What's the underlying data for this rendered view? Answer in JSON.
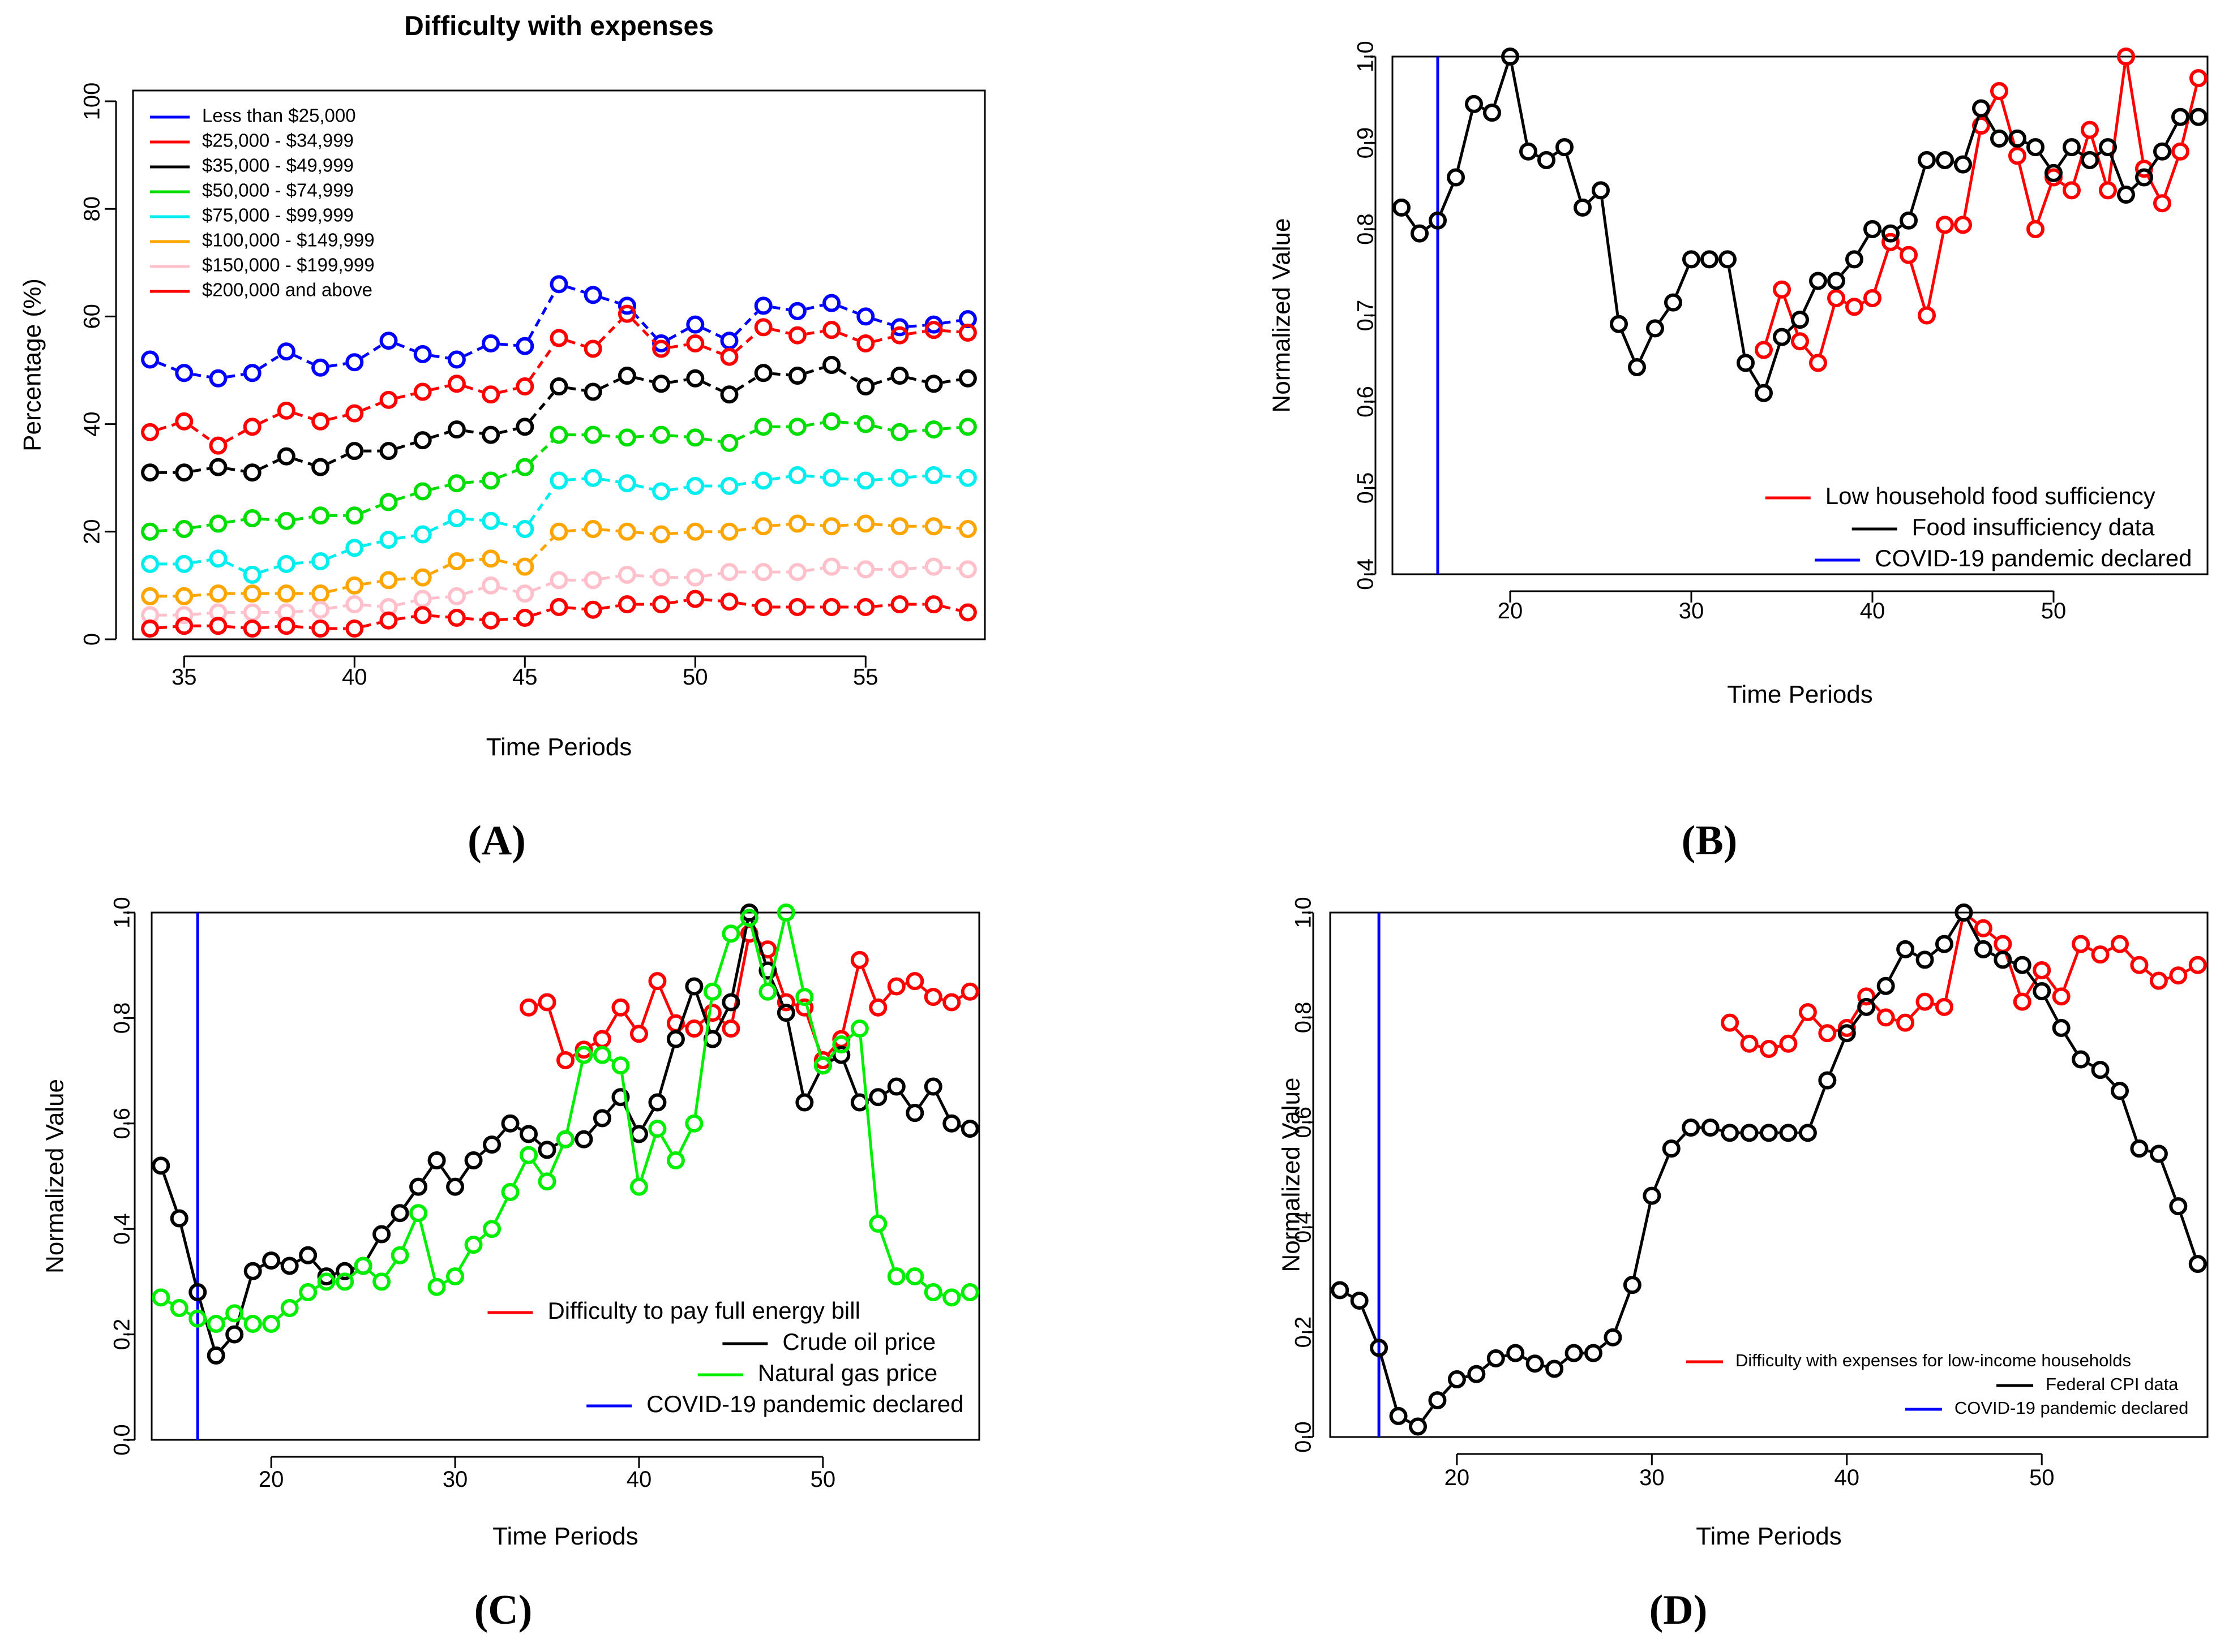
{
  "chart_data": [
    {
      "type": "line",
      "panel_label": "(A)",
      "title": "Difficulty with expenses",
      "xlabel": "Time Periods",
      "ylabel": "Percentage (%)",
      "xlim": [
        33.5,
        58.5
      ],
      "ylim": [
        0,
        102
      ],
      "xticks": [
        35,
        40,
        45,
        50,
        55
      ],
      "yticks": [
        0,
        20,
        40,
        60,
        80,
        100
      ],
      "grid": false,
      "legend_position": "top-left",
      "legend_size": "small",
      "x": [
        34,
        35,
        36,
        37,
        38,
        39,
        40,
        41,
        42,
        43,
        44,
        45,
        46,
        47,
        48,
        49,
        50,
        51,
        52,
        53,
        54,
        55,
        56,
        57,
        58
      ],
      "series": [
        {
          "name": "Less than $25,000",
          "color": "#0000FF",
          "values": [
            52,
            49.5,
            48.5,
            49.5,
            53.5,
            50.5,
            51.5,
            55.5,
            53,
            52,
            55,
            54.5,
            66,
            64,
            62,
            55,
            58.5,
            55.5,
            62,
            61,
            62.5,
            60,
            58,
            58.5,
            59.5
          ]
        },
        {
          "name": "$25,000 - $34,999",
          "color": "#FF0000",
          "values": [
            38.5,
            40.5,
            36,
            39.5,
            42.5,
            40.5,
            42,
            44.5,
            46,
            47.5,
            45.5,
            47,
            56,
            54,
            60.5,
            54,
            55,
            52.5,
            58,
            56.5,
            57.5,
            55,
            56.5,
            57.5,
            57
          ]
        },
        {
          "name": "$35,000 - $49,999",
          "color": "#000000",
          "values": [
            31,
            31,
            32,
            31,
            34,
            32,
            35,
            35,
            37,
            39,
            38,
            39.5,
            47,
            46,
            49,
            47.5,
            48.5,
            45.5,
            49.5,
            49,
            51,
            47,
            49,
            47.5,
            48.5
          ]
        },
        {
          "name": "$50,000 - $74,999",
          "color": "#00DD00",
          "values": [
            20,
            20.5,
            21.5,
            22.5,
            22,
            23,
            23,
            25.5,
            27.5,
            29,
            29.5,
            32,
            38,
            38,
            37.5,
            38,
            37.5,
            36.5,
            39.5,
            39.5,
            40.5,
            40,
            38.5,
            39,
            39.5
          ]
        },
        {
          "name": "$75,000 - $99,999",
          "color": "#00EEEE",
          "values": [
            14,
            14,
            15,
            12,
            14,
            14.5,
            17,
            18.5,
            19.5,
            22.5,
            22,
            20.5,
            29.5,
            30,
            29,
            27.5,
            28.5,
            28.5,
            29.5,
            30.5,
            30,
            29.5,
            30,
            30.5,
            30
          ]
        },
        {
          "name": "$100,000 - $149,999",
          "color": "#FFA500",
          "values": [
            8,
            8,
            8.5,
            8.5,
            8.5,
            8.5,
            10,
            11,
            11.5,
            14.5,
            15,
            13.5,
            20,
            20.5,
            20,
            19.5,
            20,
            20,
            21,
            21.5,
            21,
            21.5,
            21,
            21,
            20.5
          ]
        },
        {
          "name": "$150,000 - $199,999",
          "color": "#FFC0CB",
          "values": [
            4.5,
            4.5,
            5,
            5,
            5,
            5.5,
            6.5,
            6,
            7.5,
            8,
            10,
            8.5,
            11,
            11,
            12,
            11.5,
            11.5,
            12.5,
            12.5,
            12.5,
            13.5,
            13,
            13,
            13.5,
            13
          ]
        },
        {
          "name": "$200,000 and above",
          "color": "#FF0000",
          "values": [
            2,
            2.5,
            2.5,
            2,
            2.5,
            2,
            2,
            3.5,
            4.5,
            4,
            3.5,
            4,
            6,
            5.5,
            6.5,
            6.5,
            7.5,
            7,
            6,
            6,
            6,
            6,
            6.5,
            6.5,
            5
          ]
        }
      ]
    },
    {
      "type": "line",
      "panel_label": "(B)",
      "xlabel": "Time Periods",
      "ylabel": "Normalized Value",
      "xlim": [
        13.5,
        58.5
      ],
      "ylim": [
        0.4,
        1.0
      ],
      "xticks": [
        20,
        30,
        40,
        50
      ],
      "yticks": [
        0.4,
        0.5,
        0.6,
        0.7,
        0.8,
        0.9,
        1.0
      ],
      "grid": false,
      "legend_position": "bottom-right",
      "legend_size": "large",
      "vline": {
        "x": 16,
        "y_range": [
          0.4,
          1.0
        ],
        "color": "#0000FF"
      },
      "series": [
        {
          "name": "Low household food sufficiency",
          "color": "#FF0000",
          "x": [
            34,
            35,
            36,
            37,
            38,
            39,
            40,
            41,
            42,
            43,
            44,
            45,
            46,
            47,
            48,
            49,
            50,
            51,
            52,
            53,
            54,
            55,
            56,
            57,
            58
          ],
          "values": [
            0.66,
            0.73,
            0.67,
            0.645,
            0.72,
            0.71,
            0.72,
            0.785,
            0.77,
            0.7,
            0.805,
            0.805,
            0.92,
            0.96,
            0.885,
            0.8,
            0.86,
            0.845,
            0.915,
            0.845,
            1.0,
            0.87,
            0.83,
            0.89,
            0.975
          ]
        },
        {
          "name": "Food insufficiency data",
          "color": "#000000",
          "x": [
            14,
            15,
            16,
            17,
            18,
            19,
            20,
            21,
            22,
            23,
            24,
            25,
            26,
            27,
            28,
            29,
            30,
            31,
            32,
            33,
            34,
            35,
            36,
            37,
            38,
            39,
            40,
            41,
            42,
            43,
            44,
            45,
            46,
            47,
            48,
            49,
            50,
            51,
            52,
            53,
            54,
            55,
            56,
            57,
            58
          ],
          "values": [
            0.825,
            0.795,
            0.81,
            0.86,
            0.945,
            0.935,
            1.0,
            0.89,
            0.88,
            0.895,
            0.825,
            0.845,
            0.69,
            0.64,
            0.685,
            0.715,
            0.765,
            0.765,
            0.765,
            0.645,
            0.61,
            0.675,
            0.695,
            0.74,
            0.74,
            0.765,
            0.8,
            0.795,
            0.81,
            0.88,
            0.88,
            0.875,
            0.94,
            0.905,
            0.905,
            0.895,
            0.865,
            0.895,
            0.88,
            0.895,
            0.84,
            0.86,
            0.89,
            0.93,
            0.93
          ]
        },
        {
          "name": "COVID-19 pandemic declared",
          "color": "#0000FF",
          "x": [],
          "values": []
        }
      ]
    },
    {
      "type": "line",
      "panel_label": "(C)",
      "xlabel": "Time Periods",
      "ylabel": "Normalized Value",
      "xlim": [
        13.5,
        58.5
      ],
      "ylim": [
        0.0,
        1.0
      ],
      "xticks": [
        20,
        30,
        40,
        50
      ],
      "yticks": [
        0.0,
        0.2,
        0.4,
        0.6,
        0.8,
        1.0
      ],
      "grid": false,
      "legend_position": "bottom-right",
      "legend_size": "large",
      "vline": {
        "x": 16,
        "y_range": [
          0.0,
          1.0
        ],
        "color": "#0000FF"
      },
      "series": [
        {
          "name": "Difficulty to pay full energy bill",
          "color": "#FF0000",
          "x": [
            34,
            35,
            36,
            37,
            38,
            39,
            40,
            41,
            42,
            43,
            44,
            45,
            46,
            47,
            48,
            49,
            50,
            51,
            52,
            53,
            54,
            55,
            56,
            57,
            58
          ],
          "values": [
            0.82,
            0.83,
            0.72,
            0.74,
            0.76,
            0.82,
            0.77,
            0.87,
            0.79,
            0.78,
            0.81,
            0.78,
            0.96,
            0.93,
            0.83,
            0.82,
            0.72,
            0.76,
            0.91,
            0.82,
            0.86,
            0.87,
            0.84,
            0.83,
            0.85
          ]
        },
        {
          "name": "Crude oil price",
          "color": "#000000",
          "x": [
            14,
            15,
            16,
            17,
            18,
            19,
            20,
            21,
            22,
            23,
            24,
            25,
            26,
            27,
            28,
            29,
            30,
            31,
            32,
            33,
            34,
            35,
            36,
            37,
            38,
            39,
            40,
            41,
            42,
            43,
            44,
            45,
            46,
            47,
            48,
            49,
            50,
            51,
            52,
            53,
            54,
            55,
            56,
            57,
            58
          ],
          "values": [
            0.52,
            0.42,
            0.28,
            0.16,
            0.2,
            0.32,
            0.34,
            0.33,
            0.35,
            0.31,
            0.32,
            0.33,
            0.39,
            0.43,
            0.48,
            0.53,
            0.48,
            0.53,
            0.56,
            0.6,
            0.58,
            0.55,
            0.57,
            0.57,
            0.61,
            0.65,
            0.58,
            0.64,
            0.76,
            0.86,
            0.76,
            0.83,
            1.0,
            0.89,
            0.81,
            0.64,
            0.71,
            0.73,
            0.64,
            0.65,
            0.67,
            0.62,
            0.67,
            0.6,
            0.59
          ]
        },
        {
          "name": "Natural gas price",
          "color": "#00EE00",
          "x": [
            14,
            15,
            16,
            17,
            18,
            19,
            20,
            21,
            22,
            23,
            24,
            25,
            26,
            27,
            28,
            29,
            30,
            31,
            32,
            33,
            34,
            35,
            36,
            37,
            38,
            39,
            40,
            41,
            42,
            43,
            44,
            45,
            46,
            47,
            48,
            49,
            50,
            51,
            52,
            53,
            54,
            55,
            56,
            57,
            58
          ],
          "values": [
            0.27,
            0.25,
            0.23,
            0.22,
            0.24,
            0.22,
            0.22,
            0.25,
            0.28,
            0.3,
            0.3,
            0.33,
            0.3,
            0.35,
            0.43,
            0.29,
            0.31,
            0.37,
            0.4,
            0.47,
            0.54,
            0.49,
            0.57,
            0.73,
            0.73,
            0.71,
            0.48,
            0.59,
            0.53,
            0.6,
            0.85,
            0.96,
            0.99,
            0.85,
            1.0,
            0.84,
            0.71,
            0.75,
            0.78,
            0.41,
            0.31,
            0.31,
            0.28,
            0.27,
            0.28
          ]
        },
        {
          "name": "COVID-19 pandemic declared",
          "color": "#0000FF",
          "x": [],
          "values": []
        }
      ]
    },
    {
      "type": "line",
      "panel_label": "(D)",
      "xlabel": "Time Periods",
      "ylabel": "Normalized Value",
      "xlim": [
        13.5,
        58.5
      ],
      "ylim": [
        0.0,
        1.0
      ],
      "xticks": [
        20,
        30,
        40,
        50
      ],
      "yticks": [
        0.0,
        0.2,
        0.4,
        0.6,
        0.8,
        1.0
      ],
      "grid": false,
      "legend_position": "bottom-right",
      "legend_size": "small",
      "vline": {
        "x": 16,
        "y_range": [
          0.0,
          1.0
        ],
        "color": "#0000FF"
      },
      "series": [
        {
          "name": "Difficulty with expenses for low-income households",
          "color": "#FF0000",
          "x": [
            34,
            35,
            36,
            37,
            38,
            39,
            40,
            41,
            42,
            43,
            44,
            45,
            46,
            47,
            48,
            49,
            50,
            51,
            52,
            53,
            54,
            55,
            56,
            57,
            58
          ],
          "values": [
            0.79,
            0.75,
            0.74,
            0.75,
            0.81,
            0.77,
            0.78,
            0.84,
            0.8,
            0.79,
            0.83,
            0.82,
            1.0,
            0.97,
            0.94,
            0.83,
            0.89,
            0.84,
            0.94,
            0.92,
            0.94,
            0.9,
            0.87,
            0.88,
            0.9
          ]
        },
        {
          "name": "Federal CPI data",
          "color": "#000000",
          "x": [
            14,
            15,
            16,
            17,
            18,
            19,
            20,
            21,
            22,
            23,
            24,
            25,
            26,
            27,
            28,
            29,
            30,
            31,
            32,
            33,
            34,
            35,
            36,
            37,
            38,
            39,
            40,
            41,
            42,
            43,
            44,
            45,
            46,
            47,
            48,
            49,
            50,
            51,
            52,
            53,
            54,
            55,
            56,
            57,
            58
          ],
          "values": [
            0.28,
            0.26,
            0.17,
            0.04,
            0.02,
            0.07,
            0.11,
            0.12,
            0.15,
            0.16,
            0.14,
            0.13,
            0.16,
            0.16,
            0.19,
            0.29,
            0.46,
            0.55,
            0.59,
            0.59,
            0.58,
            0.58,
            0.58,
            0.58,
            0.58,
            0.68,
            0.77,
            0.82,
            0.86,
            0.93,
            0.91,
            0.94,
            1.0,
            0.93,
            0.91,
            0.9,
            0.85,
            0.78,
            0.72,
            0.7,
            0.66,
            0.55,
            0.54,
            0.44,
            0.33
          ]
        },
        {
          "name": "COVID-19 pandemic declared",
          "color": "#0000FF",
          "x": [],
          "values": []
        }
      ]
    }
  ]
}
